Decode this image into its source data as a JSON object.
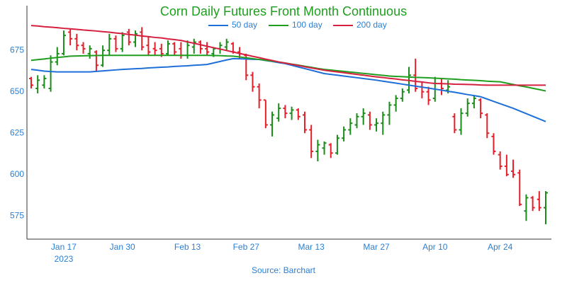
{
  "chart_data": {
    "type": "ohlc",
    "title": "Corn Daily Futures Front Month Continuous",
    "source": "Source: Barchart",
    "year_label": "2023",
    "categories": [
      null,
      null,
      null,
      null,
      null,
      "Jan 17",
      null,
      null,
      null,
      null,
      null,
      null,
      null,
      null,
      "Jan 30",
      null,
      null,
      null,
      null,
      null,
      null,
      null,
      null,
      null,
      "Feb 13",
      null,
      null,
      null,
      null,
      null,
      null,
      null,
      null,
      "Feb 27",
      null,
      null,
      null,
      null,
      null,
      null,
      null,
      null,
      null,
      "Mar 13",
      null,
      null,
      null,
      null,
      null,
      null,
      null,
      null,
      null,
      "Mar 27",
      null,
      null,
      null,
      null,
      null,
      null,
      null,
      null,
      "Apr 10",
      null,
      null,
      null,
      null,
      null,
      null,
      null,
      null,
      null,
      "Apr 24",
      null,
      null,
      null,
      null,
      null,
      null,
      null
    ],
    "open": [
      658,
      652,
      654,
      652,
      668,
      673,
      686,
      682,
      678,
      673,
      674,
      666,
      675,
      682,
      676,
      686,
      680,
      686,
      678,
      676,
      676,
      673,
      679,
      676,
      672,
      677,
      680,
      676,
      673,
      676,
      677,
      679,
      674,
      672,
      660,
      653,
      645,
      630,
      634,
      640,
      637,
      639,
      636,
      627,
      614,
      616,
      618,
      613,
      622,
      627,
      630,
      635,
      636,
      630,
      631,
      636,
      642,
      646,
      651,
      660,
      653,
      650,
      646,
      655,
      651,
      635,
      627,
      637,
      643,
      645,
      636,
      623,
      612,
      605,
      602,
      601,
      578,
      586,
      585,
      580
    ],
    "high": [
      659,
      660,
      660,
      672,
      677,
      687,
      688,
      685,
      680,
      678,
      675,
      678,
      685,
      684,
      686,
      688,
      687,
      689,
      683,
      680,
      679,
      681,
      680,
      680,
      681,
      682,
      681,
      680,
      677,
      680,
      682,
      680,
      677,
      673,
      662,
      655,
      645,
      638,
      643,
      642,
      641,
      640,
      638,
      630,
      621,
      620,
      619,
      624,
      629,
      634,
      637,
      640,
      638,
      634,
      638,
      644,
      648,
      652,
      665,
      670,
      656,
      653,
      659,
      658,
      657,
      637,
      640,
      646,
      648,
      646,
      637,
      625,
      614,
      612,
      609,
      603,
      588,
      587,
      590,
      590
    ],
    "low": [
      652,
      649,
      652,
      650,
      666,
      672,
      678,
      675,
      673,
      670,
      662,
      665,
      672,
      674,
      674,
      678,
      677,
      675,
      672,
      672,
      671,
      672,
      672,
      670,
      670,
      673,
      673,
      672,
      671,
      673,
      675,
      673,
      670,
      657,
      650,
      640,
      628,
      623,
      632,
      634,
      633,
      633,
      625,
      610,
      608,
      612,
      610,
      612,
      620,
      624,
      628,
      630,
      627,
      626,
      624,
      630,
      638,
      644,
      649,
      650,
      646,
      642,
      644,
      648,
      649,
      625,
      624,
      635,
      640,
      634,
      622,
      612,
      603,
      599,
      598,
      581,
      572,
      578,
      578,
      570
    ],
    "close": [
      654,
      657,
      658,
      668,
      673,
      684,
      682,
      678,
      676,
      676,
      666,
      675,
      682,
      676,
      684,
      680,
      685,
      677,
      674,
      675,
      673,
      679,
      674,
      672,
      678,
      680,
      676,
      674,
      676,
      678,
      680,
      674,
      673,
      660,
      653,
      645,
      630,
      636,
      640,
      637,
      639,
      635,
      627,
      614,
      618,
      619,
      613,
      622,
      627,
      631,
      635,
      637,
      630,
      631,
      636,
      642,
      646,
      650,
      660,
      652,
      650,
      645,
      655,
      652,
      653,
      627,
      637,
      643,
      646,
      637,
      625,
      614,
      605,
      600,
      600,
      582,
      586,
      580,
      580,
      589
    ],
    "up_color": "#1a8c1a",
    "down_color": "#e3202a",
    "series": [
      {
        "name": "50 day",
        "color": "#1f6fd8",
        "values": [
          663.5,
          663,
          662.5,
          662.2,
          662,
          662,
          662,
          662,
          662,
          662,
          662.3,
          662.6,
          662.9,
          663.2,
          663.5,
          663.7,
          663.9,
          664.1,
          664.4,
          664.6,
          664.8,
          665,
          665.3,
          665.5,
          665.7,
          666,
          666.2,
          666.5,
          667.4,
          668.3,
          669.2,
          670,
          669.9,
          669.8,
          669.6,
          669.5,
          668.9,
          668.3,
          667.6,
          667,
          666,
          665,
          664,
          663,
          662,
          661,
          660.5,
          660,
          659.5,
          659,
          658.5,
          658,
          657.5,
          657,
          656.4,
          655.8,
          655.2,
          654.6,
          654,
          653.4,
          652.8,
          652.2,
          651.6,
          651,
          650.3,
          649.7,
          649,
          648.3,
          647.7,
          647,
          645.6,
          644.2,
          642.8,
          641.4,
          640,
          638.4,
          636.8,
          635.2,
          633.6,
          632
        ]
      },
      {
        "name": "100 day",
        "color": "#1f9e1f",
        "values": [
          669,
          669.4,
          669.8,
          670.3,
          670.7,
          671.1,
          671.5,
          671.6,
          671.7,
          671.8,
          671.9,
          672,
          672,
          672,
          672,
          672,
          672,
          672,
          672,
          672,
          672,
          672,
          672,
          672,
          672,
          672,
          672,
          672,
          671.9,
          671.8,
          671.6,
          671.5,
          671,
          670.5,
          670,
          669.5,
          669,
          668.5,
          668,
          667.4,
          666.7,
          666.1,
          665.4,
          664.8,
          664.1,
          663.5,
          663.1,
          662.7,
          662.3,
          661.9,
          661.5,
          661.1,
          660.7,
          660.3,
          659.9,
          659.5,
          659.3,
          659.1,
          658.9,
          658.7,
          658.6,
          658.4,
          658.2,
          658,
          657.8,
          657.6,
          657.3,
          657.1,
          656.9,
          656.7,
          656.4,
          656.2,
          656,
          655.2,
          654.4,
          653.6,
          652.9,
          652.1,
          651.3,
          650.5
        ]
      },
      {
        "name": "200 day",
        "color": "#d62040",
        "values": [
          690,
          689.7,
          689.3,
          689,
          688.7,
          688.3,
          688,
          687.7,
          687.3,
          687,
          686.7,
          686.3,
          686,
          685.5,
          685.1,
          684.6,
          684.2,
          683.7,
          683.3,
          682.8,
          682.5,
          681.9,
          681.5,
          681,
          680.1,
          679.3,
          678.4,
          677.5,
          676.6,
          675.8,
          674.9,
          674,
          673.1,
          672.3,
          671.4,
          670.6,
          669.7,
          668.9,
          668,
          667.3,
          666.6,
          665.9,
          665.1,
          664.4,
          663.7,
          663,
          662.5,
          662,
          661.5,
          661,
          660.5,
          660,
          659.5,
          659,
          658.6,
          658.1,
          657.7,
          657.2,
          656.8,
          656.3,
          655.9,
          655.4,
          655,
          654.9,
          654.8,
          654.6,
          654.5,
          654.4,
          654.3,
          654.1,
          654,
          654,
          654,
          654,
          654,
          654,
          654,
          654,
          654,
          654
        ]
      }
    ],
    "ylim": [
      561,
      702
    ],
    "yticks": [
      575,
      600,
      625,
      650,
      675
    ],
    "grid": false
  }
}
